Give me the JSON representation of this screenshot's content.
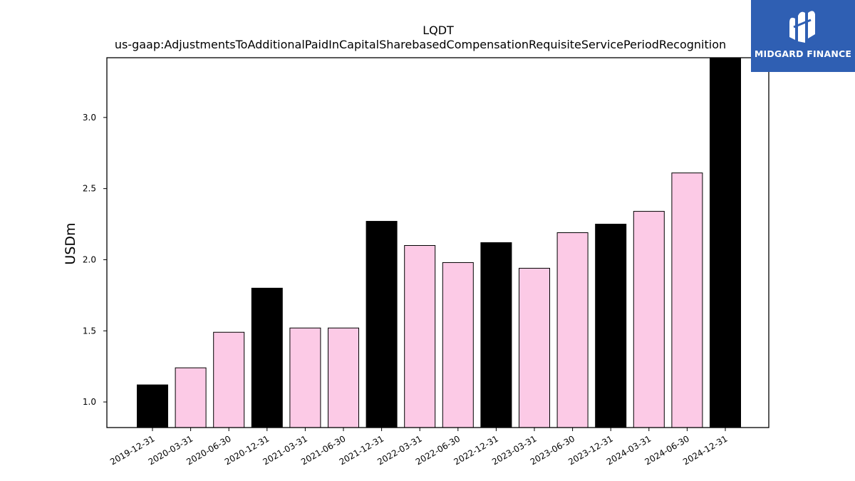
{
  "chart_data": {
    "type": "bar",
    "title": "LQDT",
    "subtitle": "us-gaap:AdjustmentsToAdditionalPaidInCapitalSharebasedCompensationRequisiteServicePeriodRecognition",
    "xlabel": "",
    "ylabel": "USDm",
    "categories": [
      "2019-12-31",
      "2020-03-31",
      "2020-06-30",
      "2020-12-31",
      "2021-03-31",
      "2021-06-30",
      "2021-12-31",
      "2022-03-31",
      "2022-06-30",
      "2022-12-31",
      "2023-03-31",
      "2023-06-30",
      "2023-12-31",
      "2024-03-31",
      "2024-06-30",
      "2024-12-31"
    ],
    "values": [
      1.12,
      1.24,
      1.49,
      1.8,
      1.52,
      1.52,
      2.27,
      2.1,
      1.98,
      2.12,
      1.94,
      2.19,
      2.25,
      2.34,
      2.61,
      3.45
    ],
    "bar_colors": [
      "#000000",
      "#fccae6",
      "#fccae6",
      "#000000",
      "#fccae6",
      "#fccae6",
      "#000000",
      "#fccae6",
      "#fccae6",
      "#000000",
      "#fccae6",
      "#fccae6",
      "#000000",
      "#fccae6",
      "#fccae6",
      "#000000"
    ],
    "yticks": [
      "1.0",
      "1.5",
      "2.0",
      "2.5",
      "3.0"
    ],
    "ylim": [
      0.82,
      3.42
    ],
    "grid": false,
    "legend": "none"
  },
  "logo": {
    "text": "MIDGARD FINANCE",
    "background": "#2f5fb3"
  }
}
